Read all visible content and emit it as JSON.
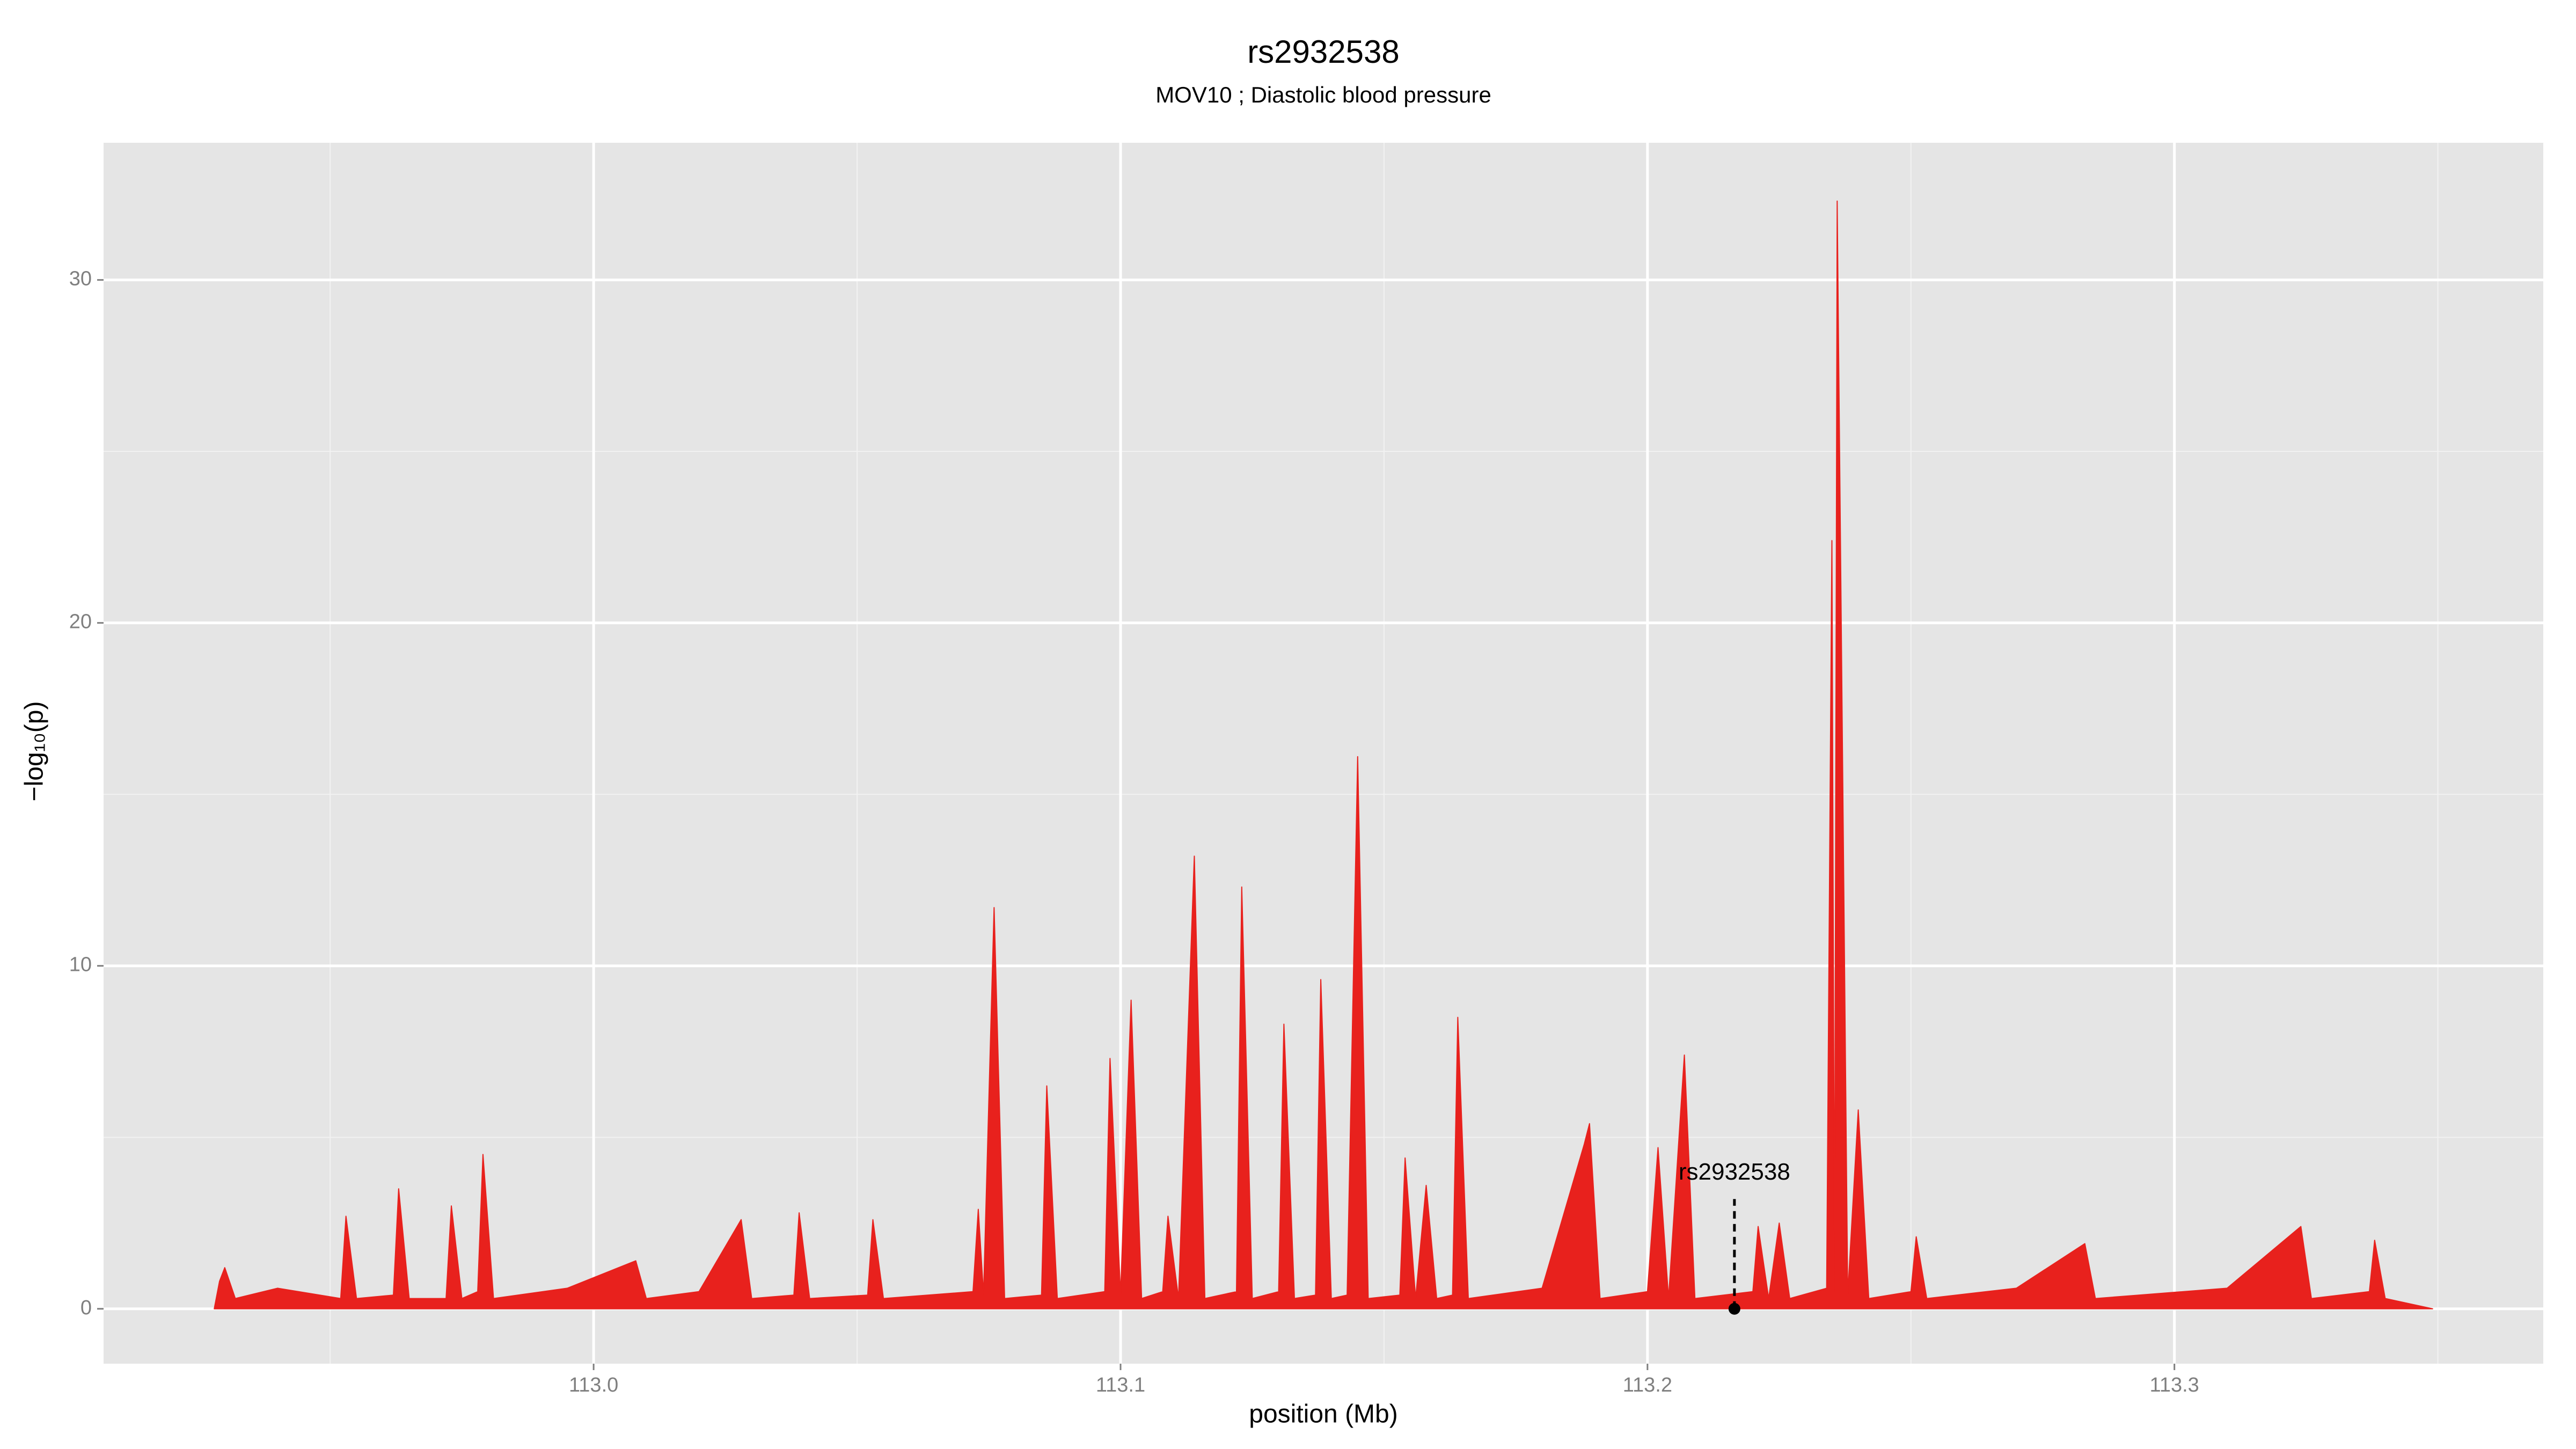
{
  "chart_data": {
    "type": "area",
    "title": "rs2932538",
    "subtitle": "MOV10 ; Diastolic blood pressure",
    "x_label": "position (Mb)",
    "y_label": "−log₁₀(p)",
    "color": "#e8211d",
    "x": [
      112.928,
      112.929,
      112.93,
      112.932,
      112.94,
      112.952,
      112.953,
      112.955,
      112.962,
      112.963,
      112.965,
      112.972,
      112.973,
      112.975,
      112.978,
      112.979,
      112.981,
      112.995,
      113.008,
      113.01,
      113.02,
      113.028,
      113.03,
      113.038,
      113.039,
      113.041,
      113.052,
      113.053,
      113.055,
      113.072,
      113.073,
      113.074,
      113.076,
      113.078,
      113.085,
      113.086,
      113.088,
      113.097,
      113.098,
      113.1,
      113.102,
      113.104,
      113.108,
      113.109,
      113.111,
      113.114,
      113.116,
      113.122,
      113.123,
      113.125,
      113.13,
      113.131,
      113.133,
      113.137,
      113.138,
      113.14,
      113.143,
      113.144,
      113.145,
      113.147,
      113.153,
      113.154,
      113.156,
      113.158,
      113.16,
      113.163,
      113.164,
      113.166,
      113.18,
      113.188,
      113.189,
      113.191,
      113.2,
      113.202,
      113.204,
      113.207,
      113.209,
      113.22,
      113.221,
      113.223,
      113.225,
      113.227,
      113.234,
      113.235,
      113.2355,
      113.236,
      113.238,
      113.24,
      113.242,
      113.25,
      113.251,
      113.253,
      113.27,
      113.283,
      113.285,
      113.31,
      113.324,
      113.326,
      113.337,
      113.338,
      113.34,
      113.349
    ],
    "values": [
      0,
      0.8,
      1.2,
      0.3,
      0.6,
      0.3,
      2.7,
      0.3,
      0.4,
      3.5,
      0.3,
      0.3,
      3,
      0.3,
      0.5,
      4.5,
      0.3,
      0.6,
      1.4,
      0.3,
      0.5,
      2.6,
      0.3,
      0.4,
      2.8,
      0.3,
      0.4,
      2.6,
      0.3,
      0.5,
      2.9,
      0.4,
      11.7,
      0.3,
      0.4,
      6.5,
      0.3,
      0.5,
      7.3,
      0.4,
      9,
      0.3,
      0.5,
      2.7,
      0.3,
      13.2,
      0.3,
      0.5,
      12.3,
      0.3,
      0.5,
      8.3,
      0.3,
      0.4,
      9.6,
      0.3,
      0.4,
      8.2,
      16.1,
      0.3,
      0.4,
      4.4,
      0.3,
      3.6,
      0.3,
      0.4,
      8.5,
      0.3,
      0.6,
      4.8,
      5.4,
      0.3,
      0.5,
      4.7,
      0.3,
      7.4,
      0.3,
      0.5,
      2.4,
      0.3,
      2.5,
      0.3,
      0.6,
      22.4,
      0.5,
      32.3,
      0.4,
      5.8,
      0.3,
      0.5,
      2.1,
      0.3,
      0.6,
      1.9,
      0.3,
      0.6,
      2.4,
      0.3,
      0.5,
      2,
      0.3,
      0
    ],
    "xlim": [
      112.907,
      113.37
    ],
    "ylim": [
      -1.6,
      34
    ],
    "xticks": [
      {
        "value": 113,
        "label": "113.0"
      },
      113.1,
      113.2,
      113.3
    ],
    "yticks": [
      0,
      10,
      20,
      30
    ],
    "x_minor_ticks": [
      112.95,
      113.05,
      113.15,
      113.25,
      113.35
    ],
    "y_minor_ticks": [
      5,
      15,
      25
    ],
    "grid": true,
    "annotation": {
      "text": "rs2932538",
      "x": 113.2165,
      "y": 0,
      "line_to": 3.2
    }
  }
}
